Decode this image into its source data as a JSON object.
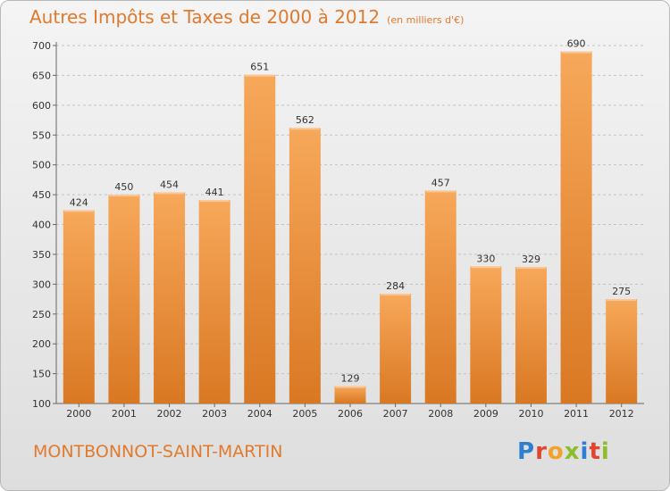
{
  "title": "Autres Impôts et Taxes de 2000 à 2012",
  "unit": "(en milliers d'€)",
  "commune": "MONTBONNOT-SAINT-MARTIN",
  "logo": {
    "text": "Proxiti",
    "letters": [
      {
        "char": "P",
        "color": "#2f7fd0"
      },
      {
        "char": "r",
        "color": "#e0452e"
      },
      {
        "char": "o",
        "color": "#f3a12a"
      },
      {
        "char": "x",
        "color": "#8cbe2a"
      },
      {
        "char": "i",
        "color": "#2f7fd0"
      },
      {
        "char": "t",
        "color": "#e0452e"
      },
      {
        "char": "i",
        "color": "#8cbe2a"
      }
    ]
  },
  "colors": {
    "accent": "#e07a2e",
    "bar_light": "#f7a85a",
    "bar_dark": "#d97823"
  },
  "chart_data": {
    "type": "bar",
    "title": "Autres Impôts et Taxes de 2000 à 2012",
    "subtitle": "(en milliers d'€)",
    "xlabel": "",
    "ylabel": "",
    "categories": [
      "2000",
      "2001",
      "2002",
      "2003",
      "2004",
      "2005",
      "2006",
      "2007",
      "2008",
      "2009",
      "2010",
      "2011",
      "2012"
    ],
    "values": [
      424,
      450,
      454,
      441,
      651,
      562,
      129,
      284,
      457,
      330,
      329,
      690,
      275
    ],
    "ylim": [
      100,
      700
    ],
    "yticks": [
      100,
      150,
      200,
      250,
      300,
      350,
      400,
      450,
      500,
      550,
      600,
      650,
      700
    ],
    "grid": true,
    "data_labels": true
  }
}
